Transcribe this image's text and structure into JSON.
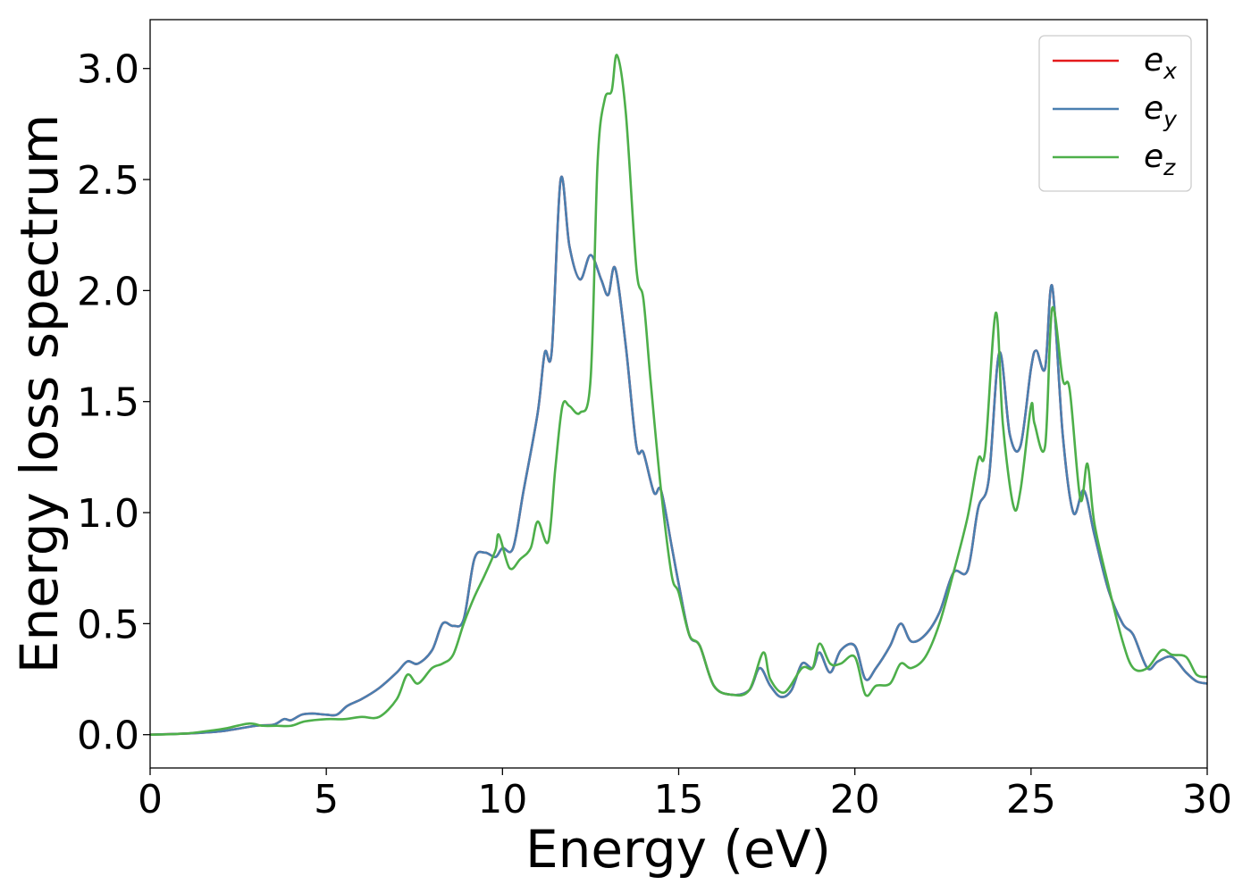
{
  "chart_data": {
    "type": "line",
    "title": "",
    "xlabel": "Energy (eV)",
    "ylabel": "Energy loss spectrum",
    "xlim": [
      0,
      30
    ],
    "ylim": [
      -0.15,
      3.22
    ],
    "xticks": [
      "0",
      "5",
      "10",
      "15",
      "20",
      "25",
      "30"
    ],
    "yticks": [
      "0.0",
      "0.5",
      "1.0",
      "1.5",
      "2.0",
      "2.5",
      "3.0"
    ],
    "grid": false,
    "legend_position": "top-right",
    "series": [
      {
        "name": "x",
        "label_base": "e",
        "label_sub": "x",
        "color": "#e41a1c",
        "x": [
          0,
          1,
          2,
          3,
          3.5,
          3.8,
          4.0,
          4.3,
          4.6,
          5.0,
          5.3,
          5.6,
          6.0,
          6.5,
          7.0,
          7.3,
          7.6,
          8.0,
          8.3,
          8.6,
          8.9,
          9.2,
          9.5,
          9.8,
          10.0,
          10.3,
          10.6,
          11.0,
          11.2,
          11.4,
          11.65,
          11.9,
          12.2,
          12.5,
          12.8,
          13.0,
          13.2,
          13.5,
          13.8,
          14.0,
          14.3,
          14.5,
          14.8,
          15.0,
          15.3,
          15.6,
          16.0,
          16.5,
          17.0,
          17.3,
          17.6,
          17.9,
          18.2,
          18.5,
          18.8,
          19.0,
          19.3,
          19.6,
          20.0,
          20.3,
          20.6,
          21.0,
          21.3,
          21.6,
          22.0,
          22.4,
          22.8,
          23.2,
          23.5,
          23.8,
          24.1,
          24.4,
          24.7,
          25.0,
          25.15,
          25.4,
          25.6,
          25.9,
          26.2,
          26.5,
          26.8,
          27.2,
          27.6,
          27.9,
          28.3,
          28.6,
          29.0,
          29.4,
          29.7,
          30
        ],
        "y": [
          0,
          0.005,
          0.015,
          0.04,
          0.045,
          0.07,
          0.065,
          0.09,
          0.095,
          0.09,
          0.09,
          0.13,
          0.16,
          0.21,
          0.28,
          0.33,
          0.32,
          0.38,
          0.5,
          0.49,
          0.52,
          0.79,
          0.82,
          0.8,
          0.84,
          0.84,
          1.1,
          1.45,
          1.72,
          1.73,
          2.5,
          2.2,
          2.05,
          2.16,
          2.05,
          1.98,
          2.1,
          1.75,
          1.3,
          1.27,
          1.09,
          1.1,
          0.85,
          0.68,
          0.45,
          0.4,
          0.22,
          0.18,
          0.2,
          0.3,
          0.22,
          0.17,
          0.2,
          0.32,
          0.3,
          0.37,
          0.28,
          0.38,
          0.4,
          0.25,
          0.3,
          0.4,
          0.5,
          0.42,
          0.45,
          0.55,
          0.73,
          0.74,
          1.02,
          1.15,
          1.72,
          1.35,
          1.3,
          1.65,
          1.73,
          1.65,
          2.02,
          1.35,
          1.0,
          1.1,
          0.9,
          0.65,
          0.5,
          0.45,
          0.3,
          0.33,
          0.35,
          0.28,
          0.24,
          0.23
        ]
      },
      {
        "name": "y",
        "label_base": "e",
        "label_sub": "y",
        "color": "#4a7fb0",
        "x": [
          0,
          1,
          2,
          3,
          3.5,
          3.8,
          4.0,
          4.3,
          4.6,
          5.0,
          5.3,
          5.6,
          6.0,
          6.5,
          7.0,
          7.3,
          7.6,
          8.0,
          8.3,
          8.6,
          8.9,
          9.2,
          9.5,
          9.8,
          10.0,
          10.3,
          10.6,
          11.0,
          11.2,
          11.4,
          11.65,
          11.9,
          12.2,
          12.5,
          12.8,
          13.0,
          13.2,
          13.5,
          13.8,
          14.0,
          14.3,
          14.5,
          14.8,
          15.0,
          15.3,
          15.6,
          16.0,
          16.5,
          17.0,
          17.3,
          17.6,
          17.9,
          18.2,
          18.5,
          18.8,
          19.0,
          19.3,
          19.6,
          20.0,
          20.3,
          20.6,
          21.0,
          21.3,
          21.6,
          22.0,
          22.4,
          22.8,
          23.2,
          23.5,
          23.8,
          24.1,
          24.4,
          24.7,
          25.0,
          25.15,
          25.4,
          25.6,
          25.9,
          26.2,
          26.5,
          26.8,
          27.2,
          27.6,
          27.9,
          28.3,
          28.6,
          29.0,
          29.4,
          29.7,
          30
        ],
        "y": [
          0,
          0.005,
          0.015,
          0.04,
          0.045,
          0.07,
          0.065,
          0.09,
          0.095,
          0.09,
          0.09,
          0.13,
          0.16,
          0.21,
          0.28,
          0.33,
          0.32,
          0.38,
          0.5,
          0.49,
          0.52,
          0.79,
          0.82,
          0.8,
          0.84,
          0.84,
          1.1,
          1.45,
          1.72,
          1.73,
          2.5,
          2.2,
          2.05,
          2.16,
          2.05,
          1.98,
          2.1,
          1.75,
          1.3,
          1.27,
          1.09,
          1.1,
          0.85,
          0.68,
          0.45,
          0.4,
          0.22,
          0.18,
          0.2,
          0.3,
          0.22,
          0.17,
          0.2,
          0.32,
          0.3,
          0.37,
          0.28,
          0.38,
          0.4,
          0.25,
          0.3,
          0.4,
          0.5,
          0.42,
          0.45,
          0.55,
          0.73,
          0.74,
          1.02,
          1.15,
          1.72,
          1.35,
          1.3,
          1.65,
          1.73,
          1.65,
          2.02,
          1.35,
          1.0,
          1.1,
          0.9,
          0.65,
          0.5,
          0.45,
          0.3,
          0.33,
          0.35,
          0.28,
          0.24,
          0.23
        ]
      },
      {
        "name": "z",
        "label_base": "e",
        "label_sub": "z",
        "color": "#4daf4a",
        "x": [
          0,
          1,
          1.8,
          2.2,
          2.8,
          3.2,
          3.6,
          4.0,
          4.4,
          5.0,
          5.5,
          6.0,
          6.5,
          7.0,
          7.3,
          7.6,
          8.0,
          8.3,
          8.6,
          8.9,
          9.2,
          9.5,
          9.8,
          9.9,
          10.2,
          10.5,
          10.8,
          11.0,
          11.3,
          11.5,
          11.7,
          11.9,
          12.2,
          12.5,
          12.7,
          12.9,
          13.1,
          13.25,
          13.5,
          13.8,
          14.0,
          14.2,
          14.5,
          14.8,
          15.0,
          15.3,
          15.6,
          16.0,
          16.5,
          17.0,
          17.4,
          17.6,
          18.0,
          18.5,
          18.8,
          19.0,
          19.3,
          19.6,
          20.0,
          20.3,
          20.6,
          21.0,
          21.3,
          21.6,
          22.0,
          22.4,
          22.8,
          23.2,
          23.5,
          23.7,
          24.0,
          24.2,
          24.5,
          24.7,
          25.0,
          25.1,
          25.4,
          25.6,
          25.9,
          26.1,
          26.4,
          26.6,
          26.8,
          27.2,
          27.6,
          27.9,
          28.3,
          28.7,
          29.0,
          29.4,
          29.7,
          30
        ],
        "y": [
          0,
          0.005,
          0.02,
          0.03,
          0.05,
          0.04,
          0.04,
          0.04,
          0.06,
          0.07,
          0.07,
          0.08,
          0.08,
          0.16,
          0.27,
          0.23,
          0.3,
          0.32,
          0.36,
          0.5,
          0.62,
          0.72,
          0.83,
          0.9,
          0.75,
          0.79,
          0.84,
          0.96,
          0.87,
          1.2,
          1.48,
          1.48,
          1.45,
          1.6,
          2.58,
          2.86,
          2.9,
          3.06,
          2.8,
          2.1,
          1.96,
          1.6,
          1.1,
          0.72,
          0.64,
          0.45,
          0.4,
          0.22,
          0.18,
          0.2,
          0.37,
          0.25,
          0.19,
          0.3,
          0.3,
          0.41,
          0.32,
          0.32,
          0.35,
          0.18,
          0.22,
          0.23,
          0.32,
          0.3,
          0.35,
          0.5,
          0.73,
          0.98,
          1.24,
          1.28,
          1.9,
          1.4,
          1.03,
          1.1,
          1.48,
          1.4,
          1.3,
          1.92,
          1.6,
          1.55,
          1.06,
          1.22,
          0.95,
          0.67,
          0.42,
          0.3,
          0.3,
          0.38,
          0.36,
          0.35,
          0.27,
          0.26
        ]
      }
    ]
  }
}
